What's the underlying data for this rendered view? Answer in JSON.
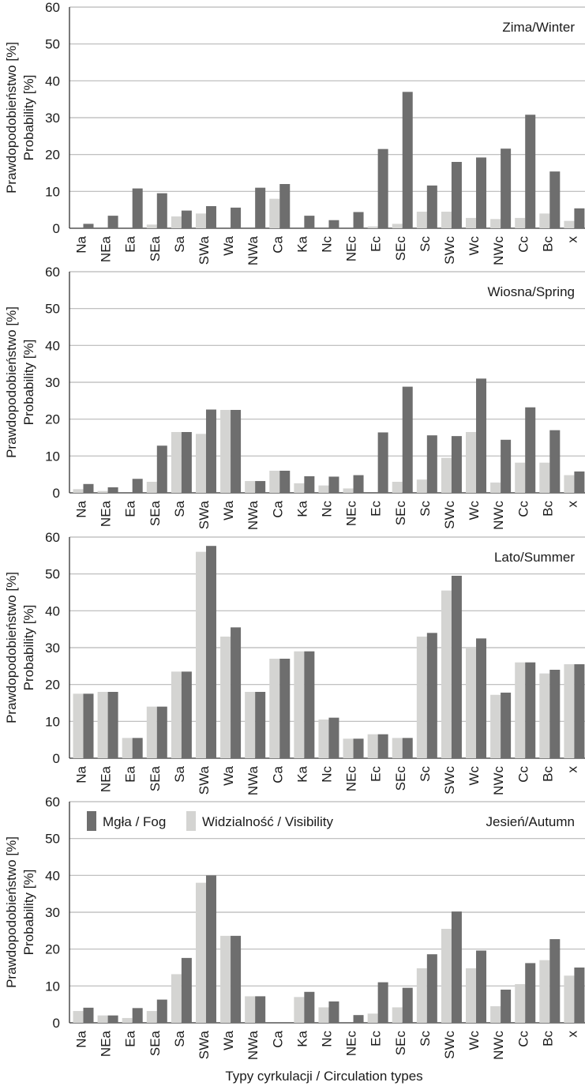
{
  "colors": {
    "fog": "#6e6e6e",
    "visibility": "#d4d4d2",
    "grid": "#b8b8b8",
    "axis": "#333333"
  },
  "chart_data": [
    {
      "type": "bar",
      "title": "Zima/Winter",
      "ylabel_pl": "Prawdopodobieństwo [%]",
      "ylabel_en": "Probability [%]",
      "ylim": [
        0,
        60
      ],
      "yticks": [
        0,
        10,
        20,
        30,
        40,
        50,
        60
      ],
      "grid": true,
      "categories": [
        "Na",
        "NEa",
        "Ea",
        "SEa",
        "Sa",
        "SWa",
        "Wa",
        "NWa",
        "Ca",
        "Ka",
        "Nc",
        "NEc",
        "Ec",
        "SEc",
        "Sc",
        "SWc",
        "Wc",
        "NWc",
        "Cc",
        "Bc",
        "x"
      ],
      "series": [
        {
          "name": "Widzialność / Visibility",
          "values": [
            0,
            0,
            0,
            1,
            3.2,
            4,
            0,
            0,
            8,
            0,
            0,
            0,
            0.5,
            1.2,
            4.5,
            4.5,
            2.8,
            2.5,
            2.8,
            4,
            2
          ]
        },
        {
          "name": "Mgła / Fog",
          "values": [
            1.2,
            3.4,
            10.8,
            9.5,
            4.8,
            6,
            5.6,
            11,
            12,
            3.4,
            2.2,
            4.4,
            21.5,
            37,
            11.6,
            18,
            19.2,
            21.6,
            30.8,
            15.4,
            5.4
          ]
        }
      ]
    },
    {
      "type": "bar",
      "title": "Wiosna/Spring",
      "ylabel_pl": "Prawdopodobieństwo [%]",
      "ylabel_en": "Probability [%]",
      "ylim": [
        0,
        60
      ],
      "yticks": [
        0,
        10,
        20,
        30,
        40,
        50,
        60
      ],
      "grid": true,
      "categories": [
        "Na",
        "NEa",
        "Ea",
        "SEa",
        "Sa",
        "SWa",
        "Wa",
        "NWa",
        "Ca",
        "Ka",
        "Nc",
        "NEc",
        "Ec",
        "SEc",
        "Sc",
        "SWc",
        "Wc",
        "NWc",
        "Cc",
        "Bc",
        "x"
      ],
      "series": [
        {
          "name": "Widzialność / Visibility",
          "values": [
            1,
            0.5,
            0,
            3,
            16.5,
            16,
            22.5,
            3.2,
            6,
            2.6,
            2,
            1.2,
            0,
            3,
            3.6,
            9.5,
            16.5,
            2.8,
            8.2,
            8.2,
            4.8
          ]
        },
        {
          "name": "Mgła / Fog",
          "values": [
            2.4,
            1.5,
            3.8,
            12.8,
            16.5,
            22.6,
            22.5,
            3.2,
            6,
            4.5,
            4.4,
            4.8,
            16.4,
            28.8,
            15.6,
            15.4,
            31,
            14.4,
            23.2,
            17,
            5.8
          ]
        }
      ]
    },
    {
      "type": "bar",
      "title": "Lato/Summer",
      "ylabel_pl": "Prawdopodobieństwo [%]",
      "ylabel_en": "Probability [%]",
      "ylim": [
        0,
        60
      ],
      "yticks": [
        0,
        10,
        20,
        30,
        40,
        50,
        60
      ],
      "grid": true,
      "categories": [
        "Na",
        "NEa",
        "Ea",
        "SEa",
        "Sa",
        "SWa",
        "Wa",
        "NWa",
        "Ca",
        "Ka",
        "Nc",
        "NEc",
        "Ec",
        "SEc",
        "Sc",
        "SWc",
        "Wc",
        "NWc",
        "Cc",
        "Bc",
        "x"
      ],
      "series": [
        {
          "name": "Widzialność / Visibility",
          "values": [
            17.5,
            18,
            5.5,
            14,
            23.5,
            56,
            33,
            18,
            27,
            29,
            10.5,
            5.3,
            6.5,
            5.5,
            33,
            45.5,
            30,
            17.2,
            26,
            23,
            25.5
          ]
        },
        {
          "name": "Mgła / Fog",
          "values": [
            17.5,
            18,
            5.5,
            14,
            23.5,
            57.6,
            35.5,
            18,
            27,
            29,
            11,
            5.3,
            6.5,
            5.5,
            34,
            49.5,
            32.5,
            17.8,
            26,
            24,
            25.5
          ]
        }
      ]
    },
    {
      "type": "bar",
      "title": "Jesień/Autumn",
      "ylabel_pl": "Prawdopodobieństwo [%]",
      "ylabel_en": "Probability [%]",
      "xlabel": "Typy cyrkulacji / Circulation types",
      "ylim": [
        0,
        60
      ],
      "yticks": [
        0,
        10,
        20,
        30,
        40,
        50,
        60
      ],
      "grid": true,
      "legend": {
        "placement": "top-left",
        "items": [
          {
            "label": "Mgła / Fog",
            "series": "Mgła / Fog"
          },
          {
            "label": "Widzialność / Visibility",
            "series": "Widzialność / Visibility"
          }
        ]
      },
      "categories": [
        "Na",
        "NEa",
        "Ea",
        "SEa",
        "Sa",
        "SWa",
        "Wa",
        "NWa",
        "Ca",
        "Ka",
        "Nc",
        "NEc",
        "Ec",
        "SEc",
        "Sc",
        "SWc",
        "Wc",
        "NWc",
        "Cc",
        "Bc",
        "x"
      ],
      "series": [
        {
          "name": "Widzialność / Visibility",
          "values": [
            3.2,
            2,
            1.3,
            3.2,
            13.2,
            38,
            23.6,
            7.2,
            0,
            7,
            4.2,
            0,
            2.5,
            4.2,
            14.8,
            25.5,
            14.8,
            4.5,
            10.5,
            17,
            12.8
          ]
        },
        {
          "name": "Mgła / Fog",
          "values": [
            4.1,
            2,
            4,
            6.3,
            17.6,
            40,
            23.6,
            7.2,
            0,
            8.4,
            5.8,
            2.1,
            11,
            9.5,
            18.6,
            30.2,
            19.6,
            9,
            16.2,
            22.7,
            15
          ]
        }
      ]
    }
  ]
}
